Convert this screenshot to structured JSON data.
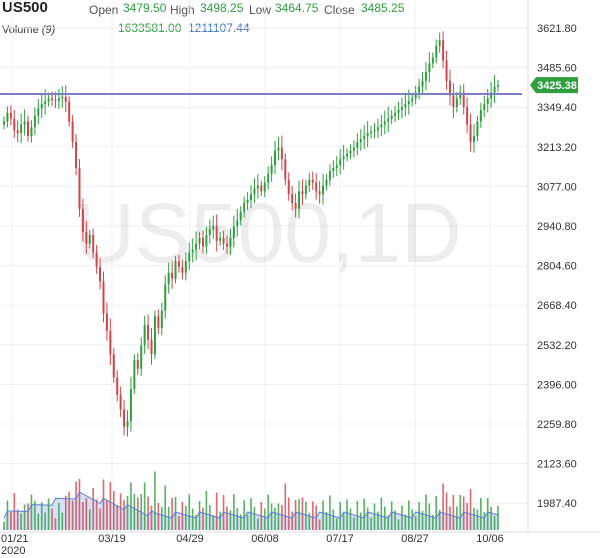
{
  "header": {
    "symbol": "US500",
    "open_label": "Open",
    "open_value": "3479.50",
    "high_label": "High",
    "high_value": "3498.25",
    "low_label": "Low",
    "low_value": "3464.75",
    "close_label": "Close",
    "close_value": "3485.25",
    "volume_label": "Volume",
    "volume_period": "(9)",
    "volume_value": "1633581.00",
    "volume_ma_value": "1211107.44"
  },
  "watermark": "US500,1D",
  "colors": {
    "up": "#2e9e3e",
    "down": "#d0454c",
    "hline": "#7b7fc4",
    "price_tag": "#2e9e3e",
    "volume_area": "#b9cdf2",
    "volume_line": "#5b7fd4"
  },
  "chart_data": {
    "type": "candlestick",
    "y_ticks": [
      "3621.80",
      "3485.60",
      "3349.40",
      "3213.20",
      "3077.00",
      "2940.80",
      "2804.60",
      "2668.40",
      "2532.20",
      "2396.00",
      "2259.80",
      "2123.60",
      "1987.40"
    ],
    "x_ticks": [
      "01/21",
      "03/19",
      "04/29",
      "06/08",
      "07/17",
      "08/27",
      "10/06"
    ],
    "x_sublabel": "2020",
    "horizontal_line": 3395,
    "current_price": "3425.38",
    "close_series": [
      3300,
      3330,
      3310,
      3270,
      3260,
      3290,
      3300,
      3250,
      3280,
      3320,
      3345,
      3360,
      3370,
      3380,
      3375,
      3372,
      3380,
      3385,
      3368,
      3300,
      3230,
      3140,
      3000,
      2920,
      2880,
      2910,
      2850,
      2800,
      2750,
      2640,
      2580,
      2500,
      2420,
      2360,
      2310,
      2250,
      2270,
      2380,
      2480,
      2450,
      2530,
      2600,
      2550,
      2500,
      2630,
      2590,
      2650,
      2740,
      2780,
      2760,
      2820,
      2800,
      2780,
      2820,
      2850,
      2860,
      2880,
      2900,
      2870,
      2910,
      2930,
      2940,
      2890,
      2900,
      2880,
      2870,
      2900,
      2940,
      2960,
      2990,
      3020,
      3030,
      3050,
      3070,
      3080,
      3060,
      3090,
      3120,
      3150,
      3200,
      3210,
      3170,
      3100,
      3050,
      3020,
      3000,
      3060,
      3050,
      3080,
      3100,
      3090,
      3060,
      3050,
      3080,
      3100,
      3130,
      3140,
      3150,
      3170,
      3180,
      3190,
      3200,
      3210,
      3230,
      3240,
      3250,
      3260,
      3265,
      3270,
      3280,
      3290,
      3300,
      3310,
      3320,
      3330,
      3340,
      3350,
      3360,
      3370,
      3380,
      3400,
      3420,
      3440,
      3470,
      3500,
      3520,
      3560,
      3580,
      3510,
      3440,
      3390,
      3350,
      3380,
      3400,
      3350,
      3290,
      3230,
      3250,
      3300,
      3340,
      3360,
      3380,
      3400,
      3420,
      3425
    ]
  }
}
